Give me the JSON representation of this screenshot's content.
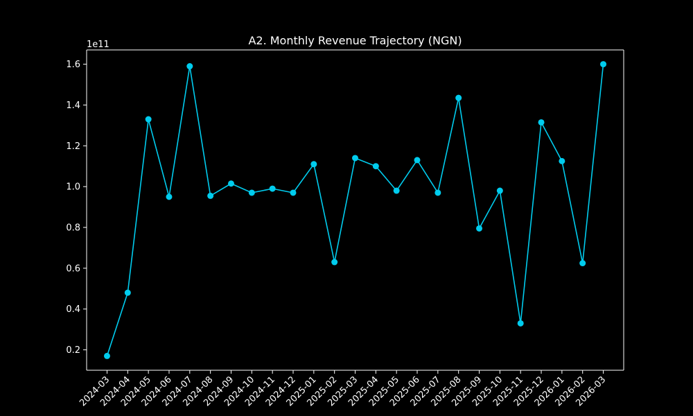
{
  "chart_data": {
    "type": "line",
    "title": "A2. Monthly Revenue Trajectory (NGN)",
    "xlabel": "",
    "ylabel": "",
    "y_offset_label": "1e11",
    "y_scale_factor": 100000000000,
    "categories": [
      "2024-03",
      "2024-04",
      "2024-05",
      "2024-06",
      "2024-07",
      "2024-08",
      "2024-09",
      "2024-10",
      "2024-11",
      "2024-12",
      "2025-01",
      "2025-02",
      "2025-03",
      "2025-04",
      "2025-05",
      "2025-06",
      "2025-07",
      "2025-08",
      "2025-09",
      "2025-10",
      "2025-11",
      "2025-12",
      "2026-01",
      "2026-02",
      "2026-03"
    ],
    "series": [
      {
        "color": "#00ccee",
        "values": [
          17000000000,
          48000000000,
          133000000000,
          95000000000,
          159000000000,
          95500000000,
          101500000000,
          97000000000,
          99000000000,
          97000000000,
          111000000000,
          63000000000,
          114000000000,
          110000000000,
          98000000000,
          113000000000,
          97000000000,
          143500000000,
          79500000000,
          98000000000,
          33000000000,
          131500000000,
          112500000000,
          62500000000,
          160000000000
        ]
      }
    ],
    "yticks": [
      0.2,
      0.4,
      0.6,
      0.8,
      1.0,
      1.2,
      1.4,
      1.6
    ],
    "ytick_labels": [
      "0.2",
      "0.4",
      "0.6",
      "0.8",
      "1.0",
      "1.2",
      "1.4",
      "1.6"
    ],
    "ylim": [
      10000000000,
      167000000000
    ],
    "grid": false,
    "legend": "none",
    "colors": {
      "background": "#000000",
      "axes": "#ffffff",
      "text": "#ffffff",
      "line": "#00ccee"
    }
  }
}
